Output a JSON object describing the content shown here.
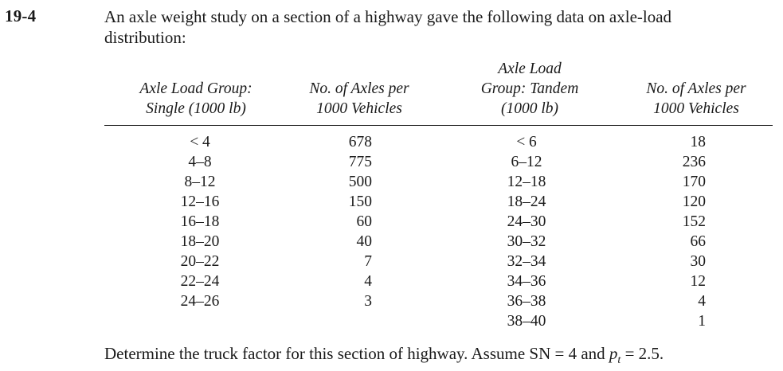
{
  "problem": {
    "number": "19-4",
    "prompt_line1": "An axle weight study on a section of a highway gave the following data on axle-load",
    "prompt_line2": "distribution:",
    "closing_text": "Determine the truck factor for this section of highway. Assume SN = 4 and ",
    "closing_var": "p",
    "closing_sub": "t",
    "closing_end": " = 2.5."
  },
  "table": {
    "headers": {
      "single_group": [
        "Axle Load Group:",
        "Single (1000 lb)"
      ],
      "single_count": [
        "No. of Axles per",
        "1000 Vehicles"
      ],
      "tandem_group": [
        "Axle Load",
        "Group: Tandem",
        "(1000 lb)"
      ],
      "tandem_count": [
        "No. of Axles per",
        "1000 Vehicles"
      ]
    },
    "single_groups": [
      "< 4",
      "4–8",
      "8–12",
      "12–16",
      "16–18",
      "18–20",
      "20–22",
      "22–24",
      "24–26"
    ],
    "single_counts": [
      "678",
      "775",
      "500",
      "150",
      "60",
      "40",
      "7",
      "4",
      "3"
    ],
    "tandem_groups": [
      "< 6",
      "6–12",
      "12–18",
      "18–24",
      "24–30",
      "30–32",
      "32–34",
      "34–36",
      "36–38",
      "38–40"
    ],
    "tandem_counts": [
      "18",
      "236",
      "170",
      "120",
      "152",
      "66",
      "30",
      "12",
      "4",
      "1"
    ]
  }
}
